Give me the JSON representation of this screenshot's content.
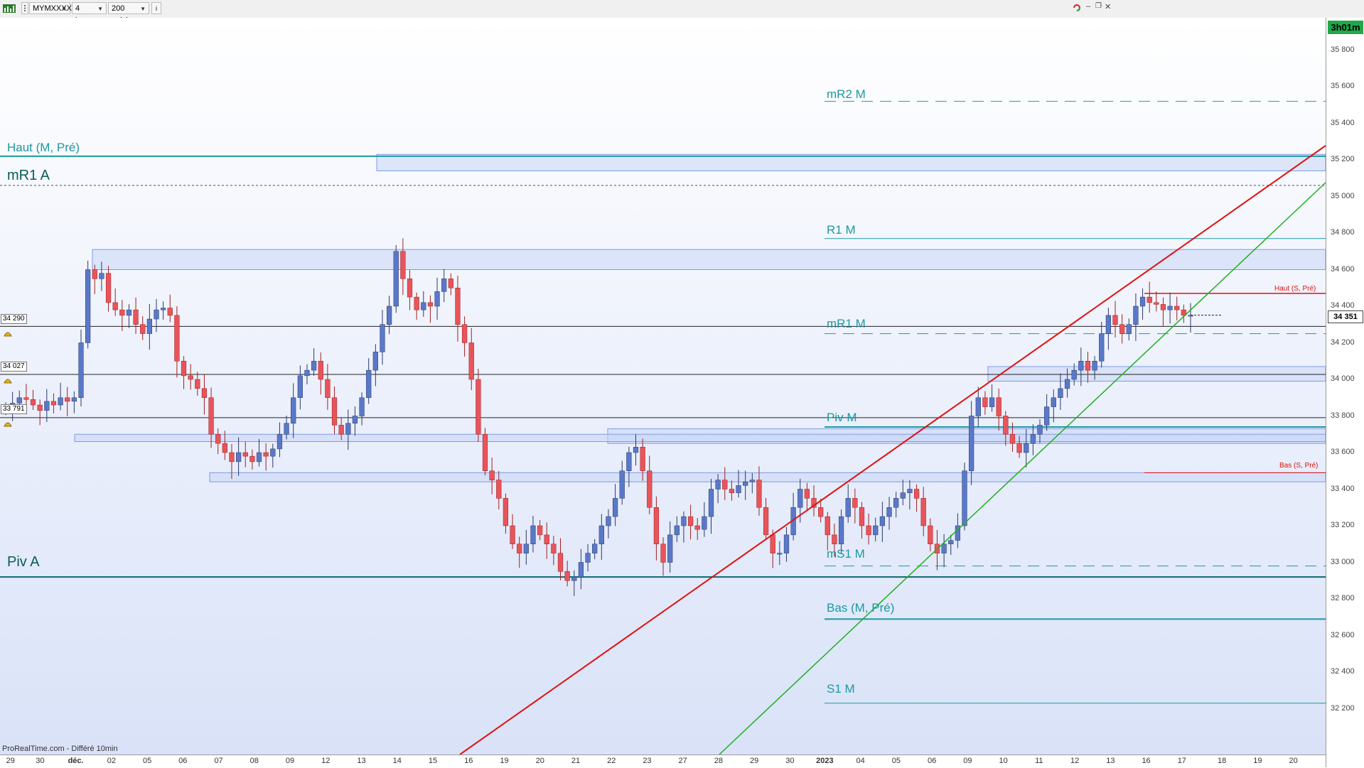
{
  "toolbar": {
    "symbol": "MYMXXXX",
    "timeframe": "4 heures",
    "units": "200 unités",
    "info_icon": "i",
    "logo_icon": "chart-logo-icon"
  },
  "timer": "3h01m",
  "last_price": "34 351",
  "source": "ProRealTime.com - Différé 10min",
  "price_tags": [
    "34 290",
    "34 027",
    "33 791"
  ],
  "levels": {
    "haut_m_pre": "Haut (M, Pré)",
    "mr1_a": "mR1 A",
    "piv_a": "Piv A",
    "mr2_m": "mR2 M",
    "r1_m": "R1 M",
    "mr1_m": "mR1 M",
    "piv_m": "Piv M",
    "ms1_m": "mS1 M",
    "bas_m_pre": "Bas (M, Pré)",
    "s1_m": "S1 M",
    "haut_s_pre": "Haut (S, Pré)",
    "bas_s_pre": "Bas (S, Pré)"
  },
  "colors": {
    "bull": "#5a78c8",
    "bear": "#e8545a",
    "teal": "#1a9aa0",
    "dark_teal": "#0a6a6a",
    "red_line": "#e01010",
    "green_line": "#20b020",
    "zone": "#c9d6f5"
  },
  "chart_data": {
    "type": "candlestick",
    "title": "",
    "ylim": [
      32000,
      36000
    ],
    "y_ticks": [
      32200,
      32400,
      32600,
      32800,
      33000,
      33200,
      33400,
      33600,
      33800,
      34000,
      34200,
      34400,
      34600,
      34800,
      35000,
      35200,
      35400,
      35600,
      35800
    ],
    "y_tick_labels": [
      "32 200",
      "32 400",
      "32 600",
      "32 800",
      "33 000",
      "33 200",
      "33 400",
      "33 600",
      "33 800",
      "34 000",
      "34 200",
      "34 400",
      "34 600",
      "34 800",
      "35 000",
      "35 200",
      "35 400",
      "35 600",
      "35 800"
    ],
    "x_tick_labels": [
      "29",
      "30",
      "déc.",
      "02",
      "05",
      "06",
      "07",
      "08",
      "09",
      "12",
      "13",
      "14",
      "15",
      "16",
      "19",
      "20",
      "21",
      "22",
      "23",
      "27",
      "28",
      "29",
      "30",
      "2023",
      "04",
      "05",
      "06",
      "09",
      "10",
      "11",
      "12",
      "13",
      "16",
      "17",
      "18",
      "19",
      "20"
    ],
    "horizontal_levels": [
      {
        "name": "Haut (M, Pré)",
        "value": 35220
      },
      {
        "name": "mR1 A",
        "value": 35060
      },
      {
        "name": "mR2 M",
        "value": 35520
      },
      {
        "name": "R1 M",
        "value": 34770
      },
      {
        "name": "mR1 M",
        "value": 34250
      },
      {
        "name": "Piv M",
        "value": 33740
      },
      {
        "name": "mS1 M",
        "value": 32980
      },
      {
        "name": "Piv A",
        "value": 32920
      },
      {
        "name": "Bas (M, Pré)",
        "value": 32690
      },
      {
        "name": "S1 M",
        "value": 32230
      },
      {
        "name": "Haut (S, Pré)",
        "value": 34470
      },
      {
        "name": "Bas (S, Pré)",
        "value": 33490
      },
      {
        "name": "34 290",
        "value": 34290
      },
      {
        "name": "34 027",
        "value": 34027
      },
      {
        "name": "33 791",
        "value": 33791
      }
    ],
    "closes": [
      33850,
      33870,
      33900,
      33890,
      33860,
      33830,
      33880,
      33860,
      33900,
      33880,
      33900,
      34200,
      34600,
      34550,
      34580,
      34420,
      34380,
      34350,
      34380,
      34300,
      34250,
      34330,
      34380,
      34390,
      34350,
      34100,
      34020,
      34000,
      33950,
      33900,
      33700,
      33650,
      33600,
      33550,
      33600,
      33580,
      33550,
      33600,
      33580,
      33620,
      33700,
      33760,
      33900,
      34020,
      34050,
      34100,
      34000,
      33900,
      33750,
      33700,
      33760,
      33800,
      33900,
      34050,
      34150,
      34300,
      34400,
      34700,
      34550,
      34450,
      34380,
      34420,
      34400,
      34480,
      34550,
      34500,
      34300,
      34200,
      34000,
      33700,
      33500,
      33450,
      33350,
      33200,
      33100,
      33050,
      33100,
      33200,
      33150,
      33100,
      33050,
      32950,
      32900,
      32920,
      33000,
      33050,
      33100,
      33200,
      33250,
      33350,
      33500,
      33600,
      33630,
      33500,
      33300,
      33100,
      33000,
      33150,
      33200,
      33250,
      33200,
      33180,
      33250,
      33400,
      33450,
      33400,
      33380,
      33420,
      33440,
      33450,
      33300,
      33150,
      33050,
      33050,
      33150,
      33300,
      33400,
      33350,
      33300,
      33250,
      33150,
      33100,
      33250,
      33350,
      33300,
      33200,
      33150,
      33200,
      33250,
      33300,
      33350,
      33380,
      33400,
      33350,
      33200,
      33100,
      33050,
      33100,
      33120,
      33200,
      33500,
      33800,
      33900,
      33850,
      33900,
      33800,
      33700,
      33650,
      33600,
      33650,
      33700,
      33750,
      33850,
      33900,
      33950,
      34000,
      34050,
      34100,
      34050,
      34100,
      34250,
      34350,
      34300,
      34250,
      34300,
      34400,
      34450,
      34420,
      34410,
      34380,
      34400,
      34380,
      34350,
      34351
    ]
  }
}
